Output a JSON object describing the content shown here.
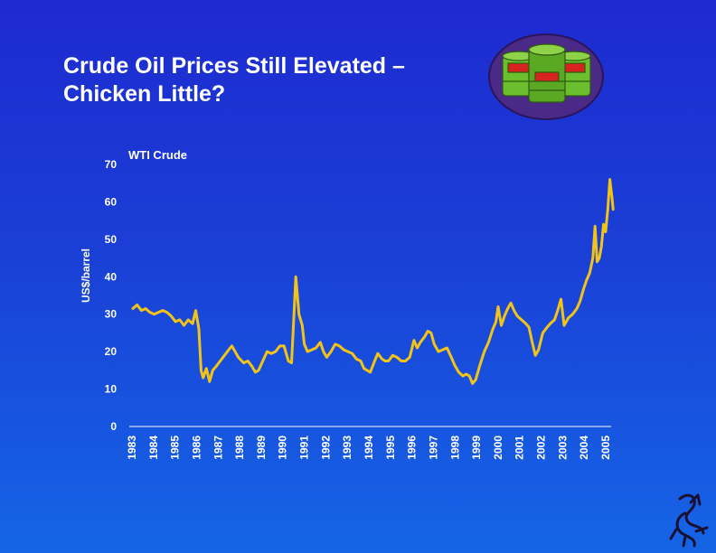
{
  "slide": {
    "title_line1": "Crude Oil Prices Still Elevated –",
    "title_line2": "Chicken Little?"
  },
  "colors": {
    "background_top": "#1e2ad0",
    "background_bottom": "#1565e6",
    "series": "#f2c418",
    "text": "#ffffff",
    "barrel_green": "#6bbf2e",
    "badge_purple": "#4a2a86"
  },
  "icons": [
    "oil-barrels-icon",
    "chicken-logo-icon"
  ],
  "chart_data": {
    "type": "line",
    "title": "",
    "series_label": "WTI Crude",
    "xlabel": "",
    "ylabel": "US$/barrel",
    "ylim": [
      0,
      70
    ],
    "yticks": [
      0,
      10,
      20,
      30,
      40,
      50,
      60,
      70
    ],
    "xlim": [
      1983,
      2005.5
    ],
    "xticks": [
      "1983",
      "1984",
      "1985",
      "1986",
      "1987",
      "1988",
      "1989",
      "1990",
      "1991",
      "1992",
      "1993",
      "1994",
      "1995",
      "1996",
      "1997",
      "1998",
      "1999",
      "2000",
      "2001",
      "2002",
      "2003",
      "2004",
      "2005"
    ],
    "grid": false,
    "series": [
      {
        "name": "WTI Crude",
        "points": [
          [
            1983.0,
            31.5
          ],
          [
            1983.2,
            32.5
          ],
          [
            1983.4,
            31.0
          ],
          [
            1983.6,
            31.5
          ],
          [
            1983.8,
            30.5
          ],
          [
            1984.0,
            30.0
          ],
          [
            1984.2,
            30.5
          ],
          [
            1984.4,
            31.0
          ],
          [
            1984.6,
            30.5
          ],
          [
            1984.8,
            29.5
          ],
          [
            1985.0,
            28.0
          ],
          [
            1985.2,
            28.5
          ],
          [
            1985.4,
            27.0
          ],
          [
            1985.6,
            28.5
          ],
          [
            1985.8,
            27.5
          ],
          [
            1985.95,
            31.0
          ],
          [
            1986.1,
            26.0
          ],
          [
            1986.2,
            15.0
          ],
          [
            1986.3,
            13.0
          ],
          [
            1986.45,
            15.5
          ],
          [
            1986.6,
            12.0
          ],
          [
            1986.75,
            15.0
          ],
          [
            1986.9,
            16.0
          ],
          [
            1987.1,
            17.5
          ],
          [
            1987.3,
            19.0
          ],
          [
            1987.5,
            20.5
          ],
          [
            1987.65,
            21.5
          ],
          [
            1987.8,
            20.0
          ],
          [
            1987.95,
            18.5
          ],
          [
            1988.2,
            17.0
          ],
          [
            1988.4,
            17.5
          ],
          [
            1988.6,
            16.0
          ],
          [
            1988.75,
            14.5
          ],
          [
            1988.9,
            15.0
          ],
          [
            1989.1,
            17.5
          ],
          [
            1989.3,
            20.0
          ],
          [
            1989.5,
            19.5
          ],
          [
            1989.7,
            20.0
          ],
          [
            1989.9,
            21.5
          ],
          [
            1990.1,
            21.5
          ],
          [
            1990.3,
            17.5
          ],
          [
            1990.45,
            17.0
          ],
          [
            1990.55,
            28.0
          ],
          [
            1990.65,
            40.0
          ],
          [
            1990.8,
            30.0
          ],
          [
            1990.95,
            27.0
          ],
          [
            1991.05,
            22.0
          ],
          [
            1991.2,
            20.0
          ],
          [
            1991.4,
            20.5
          ],
          [
            1991.6,
            21.0
          ],
          [
            1991.8,
            22.5
          ],
          [
            1991.95,
            20.0
          ],
          [
            1992.1,
            18.5
          ],
          [
            1992.3,
            20.0
          ],
          [
            1992.5,
            22.0
          ],
          [
            1992.7,
            21.5
          ],
          [
            1992.9,
            20.5
          ],
          [
            1993.1,
            20.0
          ],
          [
            1993.3,
            19.5
          ],
          [
            1993.5,
            18.0
          ],
          [
            1993.7,
            17.5
          ],
          [
            1993.85,
            15.5
          ],
          [
            1994.0,
            15.0
          ],
          [
            1994.15,
            14.5
          ],
          [
            1994.35,
            17.5
          ],
          [
            1994.5,
            19.5
          ],
          [
            1994.7,
            18.0
          ],
          [
            1994.85,
            17.5
          ],
          [
            1995.0,
            17.5
          ],
          [
            1995.2,
            19.0
          ],
          [
            1995.4,
            18.5
          ],
          [
            1995.6,
            17.5
          ],
          [
            1995.8,
            17.5
          ],
          [
            1996.0,
            18.5
          ],
          [
            1996.2,
            23.0
          ],
          [
            1996.35,
            21.0
          ],
          [
            1996.5,
            22.5
          ],
          [
            1996.7,
            24.0
          ],
          [
            1996.85,
            25.5
          ],
          [
            1997.0,
            25.0
          ],
          [
            1997.15,
            22.0
          ],
          [
            1997.35,
            20.0
          ],
          [
            1997.55,
            20.5
          ],
          [
            1997.75,
            21.0
          ],
          [
            1997.95,
            18.5
          ],
          [
            1998.1,
            16.5
          ],
          [
            1998.3,
            14.5
          ],
          [
            1998.5,
            13.5
          ],
          [
            1998.65,
            14.0
          ],
          [
            1998.8,
            13.5
          ],
          [
            1998.95,
            11.5
          ],
          [
            1999.1,
            12.5
          ],
          [
            1999.3,
            16.5
          ],
          [
            1999.5,
            20.0
          ],
          [
            1999.7,
            22.5
          ],
          [
            1999.9,
            26.0
          ],
          [
            2000.05,
            28.0
          ],
          [
            2000.15,
            32.0
          ],
          [
            2000.3,
            27.0
          ],
          [
            2000.45,
            29.5
          ],
          [
            2000.6,
            31.5
          ],
          [
            2000.75,
            33.0
          ],
          [
            2000.9,
            31.0
          ],
          [
            2001.05,
            29.5
          ],
          [
            2001.25,
            28.5
          ],
          [
            2001.45,
            27.5
          ],
          [
            2001.6,
            26.5
          ],
          [
            2001.75,
            22.5
          ],
          [
            2001.9,
            19.0
          ],
          [
            2002.05,
            20.5
          ],
          [
            2002.25,
            25.0
          ],
          [
            2002.45,
            26.5
          ],
          [
            2002.6,
            27.5
          ],
          [
            2002.8,
            28.5
          ],
          [
            2002.95,
            31.0
          ],
          [
            2003.1,
            34.0
          ],
          [
            2003.25,
            27.0
          ],
          [
            2003.45,
            29.0
          ],
          [
            2003.65,
            30.0
          ],
          [
            2003.85,
            31.5
          ],
          [
            2004.0,
            33.5
          ],
          [
            2004.15,
            36.5
          ],
          [
            2004.3,
            39.0
          ],
          [
            2004.45,
            41.0
          ],
          [
            2004.6,
            45.0
          ],
          [
            2004.7,
            53.5
          ],
          [
            2004.8,
            44.0
          ],
          [
            2004.9,
            45.0
          ],
          [
            2005.0,
            48.0
          ],
          [
            2005.1,
            54.0
          ],
          [
            2005.2,
            52.0
          ],
          [
            2005.3,
            58.0
          ],
          [
            2005.4,
            66.0
          ],
          [
            2005.5,
            61.0
          ],
          [
            2005.55,
            58.0
          ]
        ]
      }
    ]
  }
}
